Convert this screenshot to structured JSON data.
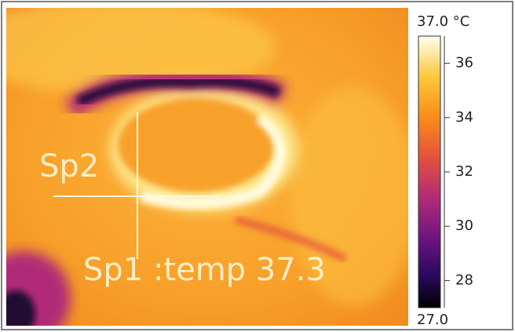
{
  "image": {
    "spots": [
      {
        "label": "Sp2"
      },
      {
        "label": "Sp1 :temp 37.3"
      }
    ]
  },
  "colorbar": {
    "top_label": "37.0 °C",
    "bottom_label": "27.0",
    "range": [
      27,
      37
    ],
    "ticks": [
      28,
      30,
      32,
      34,
      36
    ]
  }
}
